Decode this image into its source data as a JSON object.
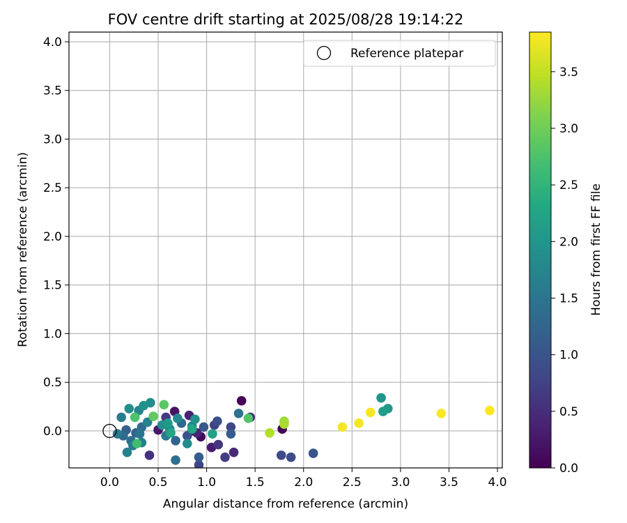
{
  "chart_data": {
    "type": "scatter",
    "title": "FOV centre drift starting at 2025/08/28 19:14:22",
    "xlabel": "Angular distance from reference (arcmin)",
    "ylabel": "Rotation from reference (arcmin)",
    "xlim": [
      -0.42,
      4.05
    ],
    "ylim": [
      -0.38,
      4.1
    ],
    "xticks": [
      "0.0",
      "0.5",
      "1.0",
      "1.5",
      "2.0",
      "2.5",
      "3.0",
      "3.5",
      "4.0"
    ],
    "yticks": [
      "0.0",
      "0.5",
      "1.0",
      "1.5",
      "2.0",
      "2.5",
      "3.0",
      "3.5",
      "4.0"
    ],
    "grid": true,
    "legend": {
      "position": "top-right",
      "label": "Reference platepar"
    },
    "reference_point": {
      "x": 0.0,
      "y": 0.0
    },
    "colorbar": {
      "label": "Hours from first FF file",
      "colormap": "viridis",
      "range": [
        0.0,
        3.85
      ],
      "ticks": [
        "0.0",
        "0.5",
        "1.0",
        "1.5",
        "2.0",
        "2.5",
        "3.0",
        "3.5"
      ]
    },
    "points": [
      {
        "x": 1.36,
        "y": 0.31,
        "h": 0.02
      },
      {
        "x": 1.78,
        "y": 0.02,
        "h": 0.05
      },
      {
        "x": 0.94,
        "y": -0.06,
        "h": 0.1
      },
      {
        "x": 0.67,
        "y": 0.2,
        "h": 0.2
      },
      {
        "x": 0.5,
        "y": 0.01,
        "h": 0.25
      },
      {
        "x": 1.05,
        "y": -0.17,
        "h": 0.3
      },
      {
        "x": 0.85,
        "y": 0.0,
        "h": 0.35
      },
      {
        "x": 0.82,
        "y": 0.16,
        "h": 0.38
      },
      {
        "x": 0.9,
        "y": -0.02,
        "h": 0.4
      },
      {
        "x": 1.28,
        "y": -0.22,
        "h": 0.45
      },
      {
        "x": 1.45,
        "y": 0.14,
        "h": 0.5
      },
      {
        "x": 0.41,
        "y": -0.25,
        "h": 0.55
      },
      {
        "x": 1.12,
        "y": -0.14,
        "h": 0.6
      },
      {
        "x": 0.58,
        "y": 0.14,
        "h": 0.65
      },
      {
        "x": 1.19,
        "y": -0.27,
        "h": 0.7
      },
      {
        "x": 1.08,
        "y": 0.06,
        "h": 0.75
      },
      {
        "x": 0.92,
        "y": -0.35,
        "h": 0.78
      },
      {
        "x": 1.25,
        "y": 0.04,
        "h": 0.8
      },
      {
        "x": 1.77,
        "y": -0.25,
        "h": 0.85
      },
      {
        "x": 1.87,
        "y": -0.27,
        "h": 0.9
      },
      {
        "x": 1.11,
        "y": 0.1,
        "h": 0.92
      },
      {
        "x": 0.8,
        "y": -0.05,
        "h": 0.95
      },
      {
        "x": 2.1,
        "y": -0.23,
        "h": 1.0
      },
      {
        "x": 0.97,
        "y": 0.04,
        "h": 1.05
      },
      {
        "x": 1.25,
        "y": -0.03,
        "h": 1.1
      },
      {
        "x": 0.92,
        "y": -0.27,
        "h": 1.12
      },
      {
        "x": 0.17,
        "y": 0.01,
        "h": 1.15
      },
      {
        "x": 0.27,
        "y": -0.02,
        "h": 1.2
      },
      {
        "x": 0.68,
        "y": -0.1,
        "h": 1.25
      },
      {
        "x": 0.74,
        "y": 0.08,
        "h": 1.3
      },
      {
        "x": 0.14,
        "y": -0.05,
        "h": 1.32
      },
      {
        "x": 0.33,
        "y": 0.04,
        "h": 1.35
      },
      {
        "x": 0.68,
        "y": -0.3,
        "h": 1.4
      },
      {
        "x": 0.22,
        "y": -0.1,
        "h": 1.42
      },
      {
        "x": 1.33,
        "y": 0.18,
        "h": 1.45
      },
      {
        "x": 0.31,
        "y": -0.03,
        "h": 1.5
      },
      {
        "x": 0.08,
        "y": -0.03,
        "h": 1.52
      },
      {
        "x": 0.24,
        "y": -0.15,
        "h": 1.55
      },
      {
        "x": 0.12,
        "y": 0.14,
        "h": 1.58
      },
      {
        "x": 0.58,
        "y": -0.05,
        "h": 1.6
      },
      {
        "x": 0.33,
        "y": -0.12,
        "h": 1.65
      },
      {
        "x": 0.18,
        "y": -0.22,
        "h": 1.68
      },
      {
        "x": 0.85,
        "y": 0.05,
        "h": 1.7
      },
      {
        "x": 0.39,
        "y": 0.09,
        "h": 1.72
      },
      {
        "x": 0.3,
        "y": 0.21,
        "h": 1.75
      },
      {
        "x": 0.7,
        "y": 0.13,
        "h": 1.78
      },
      {
        "x": 0.62,
        "y": 0.02,
        "h": 1.8
      },
      {
        "x": 0.8,
        "y": -0.13,
        "h": 1.82
      },
      {
        "x": 0.42,
        "y": 0.29,
        "h": 1.85
      },
      {
        "x": 0.2,
        "y": 0.23,
        "h": 1.88
      },
      {
        "x": 0.54,
        "y": 0.06,
        "h": 1.9
      },
      {
        "x": 0.35,
        "y": 0.26,
        "h": 1.92
      },
      {
        "x": 0.88,
        "y": 0.12,
        "h": 1.95
      },
      {
        "x": 2.8,
        "y": 0.34,
        "h": 2.0
      },
      {
        "x": 2.87,
        "y": 0.23,
        "h": 2.05
      },
      {
        "x": 0.6,
        "y": 0.08,
        "h": 2.1
      },
      {
        "x": 2.82,
        "y": 0.2,
        "h": 2.15
      },
      {
        "x": 1.06,
        "y": -0.03,
        "h": 2.2
      },
      {
        "x": 0.63,
        "y": -0.02,
        "h": 2.25
      },
      {
        "x": 0.85,
        "y": 0.02,
        "h": 2.3
      },
      {
        "x": 0.28,
        "y": -0.13,
        "h": 2.65
      },
      {
        "x": 0.26,
        "y": 0.14,
        "h": 2.75
      },
      {
        "x": 1.43,
        "y": 0.13,
        "h": 2.8
      },
      {
        "x": 0.56,
        "y": 0.27,
        "h": 2.85
      },
      {
        "x": 0.45,
        "y": 0.15,
        "h": 2.9
      },
      {
        "x": 1.8,
        "y": 0.1,
        "h": 3.3
      },
      {
        "x": 1.8,
        "y": 0.07,
        "h": 3.35
      },
      {
        "x": 1.65,
        "y": -0.02,
        "h": 3.4
      },
      {
        "x": 2.4,
        "y": 0.04,
        "h": 3.8
      },
      {
        "x": 2.57,
        "y": 0.08,
        "h": 3.8
      },
      {
        "x": 2.69,
        "y": 0.19,
        "h": 3.82
      },
      {
        "x": 3.42,
        "y": 0.18,
        "h": 3.83
      },
      {
        "x": 3.92,
        "y": 0.21,
        "h": 3.85
      }
    ]
  }
}
